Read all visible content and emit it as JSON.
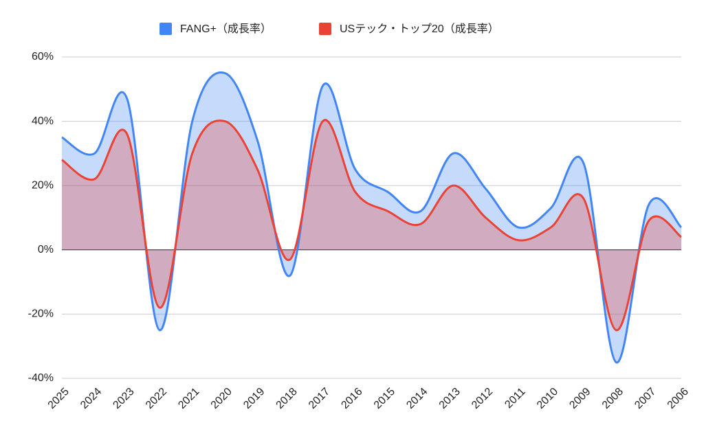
{
  "chart_data": {
    "type": "area",
    "categories": [
      "2025",
      "2024",
      "2023",
      "2022",
      "2021",
      "2020",
      "2019",
      "2018",
      "2017",
      "2016",
      "2015",
      "2014",
      "2013",
      "2012",
      "2011",
      "2010",
      "2009",
      "2008",
      "2007",
      "2006"
    ],
    "series": [
      {
        "name": "FANG+（成長率）",
        "color": "#4285f4",
        "values": [
          35,
          30,
          47,
          -25,
          40,
          55,
          34,
          -8,
          51,
          25,
          18,
          12,
          30,
          19,
          7,
          13,
          27,
          -35,
          14,
          7
        ]
      },
      {
        "name": "USテック・トップ20（成長率）",
        "color": "#ea4335",
        "values": [
          28,
          22,
          36,
          -18,
          30,
          40,
          25,
          -3,
          40,
          18,
          12,
          8,
          20,
          10,
          3,
          7,
          16,
          -25,
          9,
          4
        ]
      }
    ],
    "ylim": [
      -40,
      60
    ],
    "yticks": [
      {
        "value": -40,
        "label": "-40%"
      },
      {
        "value": -20,
        "label": "-20%"
      },
      {
        "value": 0,
        "label": "0%"
      },
      {
        "value": 20,
        "label": "20%"
      },
      {
        "value": 40,
        "label": "40%"
      },
      {
        "value": 60,
        "label": "60%"
      }
    ],
    "grid": true,
    "legend": "top"
  }
}
